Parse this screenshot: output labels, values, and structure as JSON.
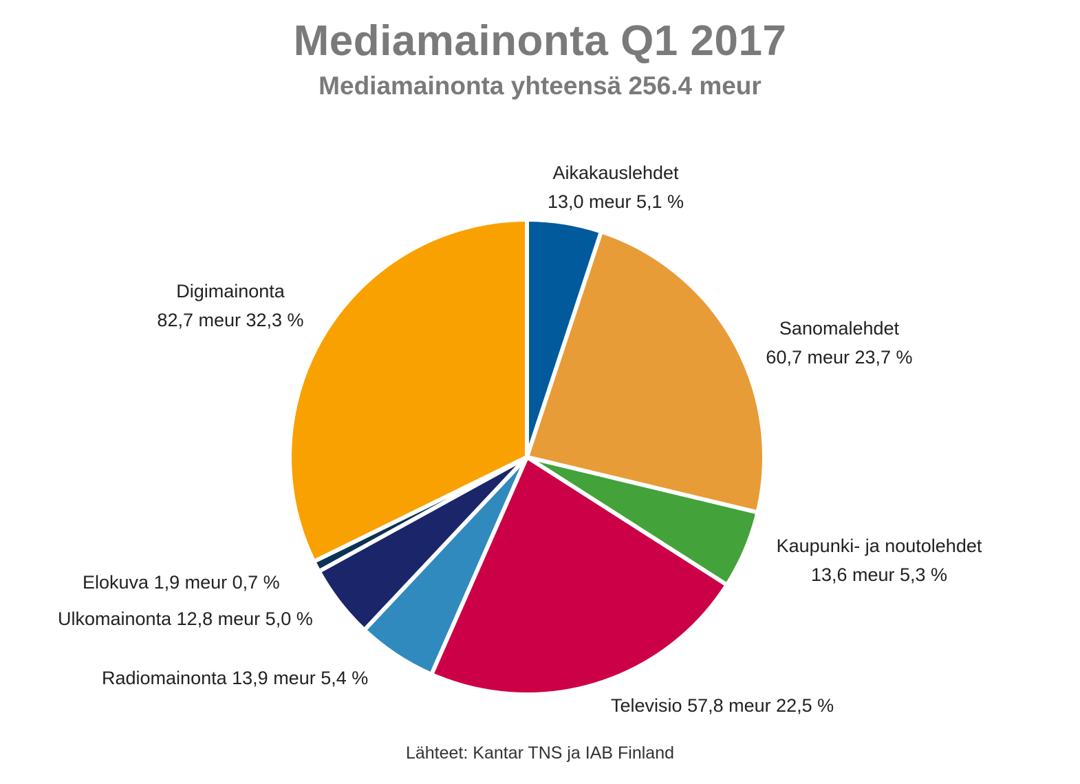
{
  "title": "Mediamainonta Q1 2017",
  "subtitle": "Mediamainonta yhteensä 256.4 meur",
  "source": "Lähteet: Kantar TNS ja IAB Finland",
  "chart_data": {
    "type": "pie",
    "title": "Mediamainonta Q1 2017",
    "subtitle": "Mediamainonta yhteensä 256.4 meur",
    "unit": "meur",
    "total": 256.4,
    "start": "12 o'clock, clockwise",
    "slices": [
      {
        "name": "Aikakauslehdet",
        "value": 13.0,
        "percent": 5.1,
        "color": "#005a9c",
        "value_text": "13,0 meur 5,1 %"
      },
      {
        "name": "Sanomalehdet",
        "value": 60.7,
        "percent": 23.7,
        "color": "#e89c37",
        "value_text": "60,7 meur 23,7 %"
      },
      {
        "name": "Kaupunki- ja noutolehdet",
        "value": 13.6,
        "percent": 5.3,
        "color": "#43a23a",
        "value_text": "13,6 meur 5,3 %"
      },
      {
        "name": "Televisio",
        "value": 57.8,
        "percent": 22.5,
        "color": "#cc0047",
        "value_text": "57,8 meur 22,5 %"
      },
      {
        "name": "Radiomainonta",
        "value": 13.9,
        "percent": 5.4,
        "color": "#318abe",
        "value_text": "13,9 meur 5,4 %"
      },
      {
        "name": "Ulkomainonta",
        "value": 12.8,
        "percent": 5.0,
        "color": "#1a2669",
        "value_text": "12,8 meur 5,0 %"
      },
      {
        "name": "Elokuva",
        "value": 1.9,
        "percent": 0.7,
        "color": "#0c3254",
        "value_text": "1,9 meur 0,7 %"
      },
      {
        "name": "Digimainonta",
        "value": 82.7,
        "percent": 32.3,
        "color": "#f9a100",
        "value_text": "82,7 meur 32,3 %"
      }
    ]
  }
}
